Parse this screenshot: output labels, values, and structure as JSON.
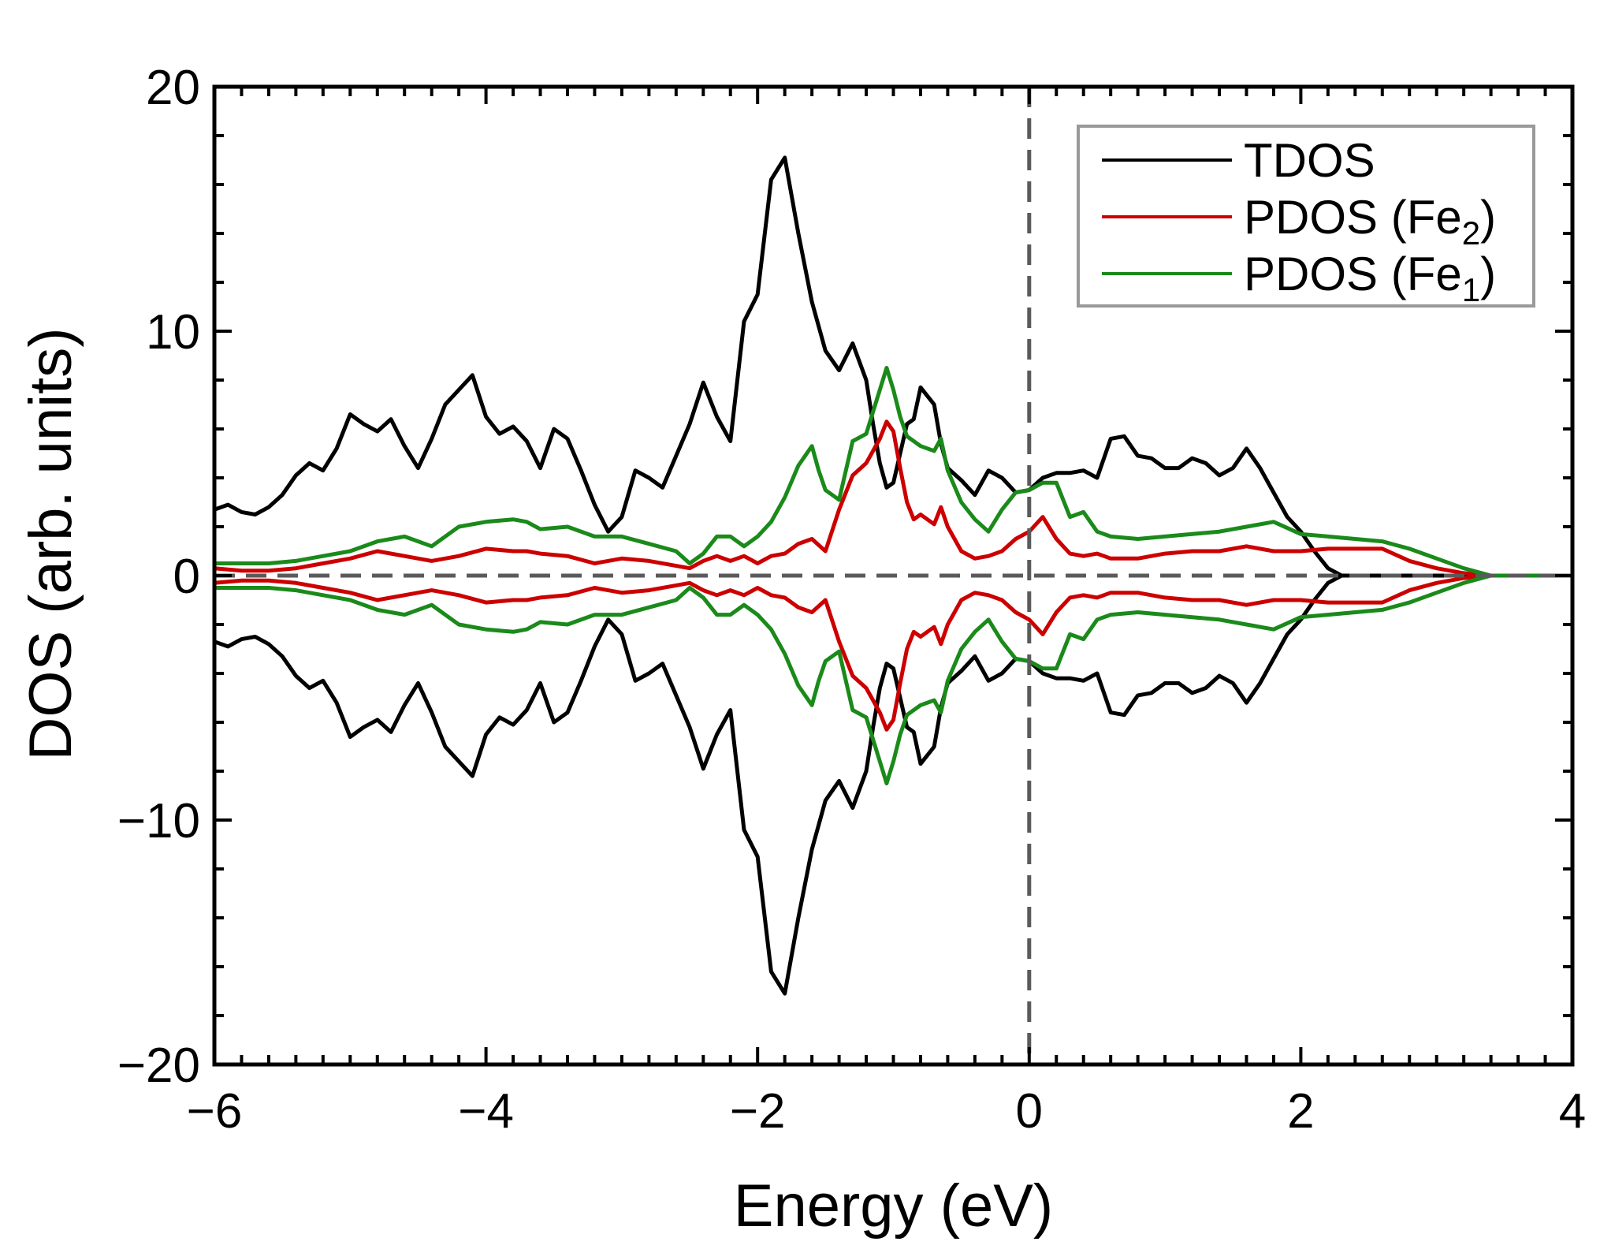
{
  "chart_data": {
    "type": "line",
    "xlabel": "Energy (eV)",
    "ylabel": "DOS (arb. units)",
    "xlim": [
      -6,
      4
    ],
    "ylim": [
      -20,
      20
    ],
    "xticks": [
      -6,
      -4,
      -2,
      0,
      2,
      4
    ],
    "xtick_labels": [
      "−6",
      "−4",
      "−2",
      "0",
      "2",
      "4"
    ],
    "yticks": [
      -20,
      -10,
      0,
      10,
      20
    ],
    "ytick_labels": [
      "−20",
      "−10",
      "0",
      "10",
      "20"
    ],
    "reference_lines": [
      {
        "orientation": "vertical",
        "value": 0,
        "style": "dashed"
      },
      {
        "orientation": "horizontal",
        "value": 0,
        "style": "dashed"
      }
    ],
    "legend_position": "top-right",
    "mirrored_spin_down": true,
    "series": [
      {
        "name": "TDOS",
        "legend_label": "TDOS",
        "color": "#000000",
        "x": [
          -6.0,
          -5.9,
          -5.8,
          -5.7,
          -5.6,
          -5.5,
          -5.4,
          -5.3,
          -5.2,
          -5.1,
          -5.0,
          -4.9,
          -4.8,
          -4.7,
          -4.6,
          -4.5,
          -4.4,
          -4.3,
          -4.2,
          -4.1,
          -4.0,
          -3.9,
          -3.8,
          -3.7,
          -3.6,
          -3.5,
          -3.4,
          -3.3,
          -3.2,
          -3.1,
          -3.0,
          -2.9,
          -2.8,
          -2.7,
          -2.6,
          -2.5,
          -2.4,
          -2.3,
          -2.2,
          -2.1,
          -2.0,
          -1.9,
          -1.8,
          -1.7,
          -1.6,
          -1.5,
          -1.4,
          -1.3,
          -1.2,
          -1.15,
          -1.1,
          -1.05,
          -1.0,
          -0.95,
          -0.9,
          -0.85,
          -0.8,
          -0.7,
          -0.65,
          -0.6,
          -0.5,
          -0.4,
          -0.3,
          -0.2,
          -0.1,
          0.0,
          0.1,
          0.2,
          0.3,
          0.4,
          0.5,
          0.6,
          0.7,
          0.8,
          0.9,
          1.0,
          1.1,
          1.2,
          1.3,
          1.4,
          1.5,
          1.6,
          1.7,
          1.8,
          1.9,
          2.0,
          2.1,
          2.2,
          2.3,
          2.4,
          2.5,
          2.6,
          2.7,
          2.8,
          2.9,
          3.0,
          3.1,
          3.2,
          3.3,
          3.4,
          3.6,
          3.8,
          4.0
        ],
        "y": [
          2.7,
          2.9,
          2.6,
          2.5,
          2.8,
          3.3,
          4.1,
          4.6,
          4.3,
          5.2,
          6.6,
          6.2,
          5.9,
          6.4,
          5.3,
          4.4,
          5.6,
          7.0,
          7.6,
          8.2,
          6.5,
          5.8,
          6.1,
          5.5,
          4.4,
          6.0,
          5.6,
          4.3,
          2.9,
          1.8,
          2.4,
          4.3,
          4.0,
          3.6,
          4.9,
          6.2,
          7.9,
          6.5,
          5.5,
          10.4,
          11.5,
          16.2,
          17.1,
          14.0,
          11.2,
          9.2,
          8.4,
          9.5,
          8.0,
          6.2,
          4.6,
          3.6,
          3.8,
          5.0,
          6.2,
          6.4,
          7.7,
          7.0,
          5.4,
          4.4,
          3.9,
          3.3,
          4.3,
          4.0,
          3.4,
          3.5,
          4.0,
          4.2,
          4.2,
          4.3,
          4.0,
          5.6,
          5.7,
          4.9,
          4.8,
          4.4,
          4.4,
          4.8,
          4.6,
          4.1,
          4.4,
          5.2,
          4.4,
          3.4,
          2.4,
          1.8,
          1.0,
          0.3,
          0.0,
          0.0,
          0.0,
          0.0,
          0.0,
          0.0,
          0.0,
          0.0,
          0.0,
          0.0,
          0.0,
          0.0,
          0.0,
          0.0,
          0.0
        ]
      },
      {
        "name": "PDOS (Fe2)",
        "legend_label": "PDOS (Fe",
        "legend_sub": "2",
        "color": "#cc0000",
        "x": [
          -6.0,
          -5.8,
          -5.6,
          -5.4,
          -5.2,
          -5.0,
          -4.8,
          -4.6,
          -4.4,
          -4.2,
          -4.0,
          -3.8,
          -3.7,
          -3.6,
          -3.4,
          -3.2,
          -3.0,
          -2.8,
          -2.6,
          -2.5,
          -2.4,
          -2.3,
          -2.2,
          -2.1,
          -2.0,
          -1.9,
          -1.8,
          -1.7,
          -1.6,
          -1.5,
          -1.4,
          -1.3,
          -1.2,
          -1.1,
          -1.05,
          -1.0,
          -0.95,
          -0.9,
          -0.85,
          -0.8,
          -0.7,
          -0.65,
          -0.6,
          -0.5,
          -0.4,
          -0.3,
          -0.2,
          -0.1,
          0.0,
          0.1,
          0.2,
          0.3,
          0.4,
          0.5,
          0.6,
          0.8,
          1.0,
          1.2,
          1.4,
          1.6,
          1.8,
          2.0,
          2.2,
          2.4,
          2.6,
          2.8,
          3.0,
          3.2,
          3.4,
          4.0
        ],
        "y": [
          0.3,
          0.2,
          0.2,
          0.3,
          0.5,
          0.7,
          1.0,
          0.8,
          0.6,
          0.8,
          1.1,
          1.0,
          1.0,
          0.9,
          0.8,
          0.5,
          0.7,
          0.6,
          0.4,
          0.3,
          0.6,
          0.8,
          0.6,
          0.8,
          0.5,
          0.8,
          0.9,
          1.3,
          1.5,
          1.0,
          2.7,
          4.1,
          4.6,
          5.6,
          6.3,
          5.9,
          4.4,
          3.0,
          2.3,
          2.5,
          2.1,
          2.8,
          2.0,
          1.0,
          0.7,
          0.8,
          1.0,
          1.5,
          1.8,
          2.4,
          1.5,
          0.9,
          0.8,
          0.9,
          0.7,
          0.7,
          0.9,
          1.0,
          1.0,
          1.2,
          1.0,
          1.0,
          1.1,
          1.1,
          1.1,
          0.6,
          0.3,
          0.1,
          0.0,
          0.0
        ]
      },
      {
        "name": "PDOS (Fe1)",
        "legend_label": "PDOS (Fe",
        "legend_sub": "1",
        "color": "#1a8a1a",
        "x": [
          -6.0,
          -5.8,
          -5.6,
          -5.4,
          -5.2,
          -5.0,
          -4.8,
          -4.6,
          -4.4,
          -4.2,
          -4.0,
          -3.8,
          -3.7,
          -3.6,
          -3.4,
          -3.2,
          -3.0,
          -2.8,
          -2.6,
          -2.5,
          -2.4,
          -2.3,
          -2.2,
          -2.1,
          -2.0,
          -1.9,
          -1.8,
          -1.7,
          -1.6,
          -1.55,
          -1.5,
          -1.4,
          -1.3,
          -1.2,
          -1.1,
          -1.05,
          -1.0,
          -0.95,
          -0.9,
          -0.8,
          -0.7,
          -0.65,
          -0.6,
          -0.5,
          -0.4,
          -0.3,
          -0.2,
          -0.1,
          0.0,
          0.1,
          0.2,
          0.3,
          0.4,
          0.5,
          0.6,
          0.8,
          1.0,
          1.2,
          1.4,
          1.6,
          1.8,
          2.0,
          2.2,
          2.4,
          2.6,
          2.8,
          3.0,
          3.2,
          3.4,
          4.0
        ],
        "y": [
          0.5,
          0.5,
          0.5,
          0.6,
          0.8,
          1.0,
          1.4,
          1.6,
          1.2,
          2.0,
          2.2,
          2.3,
          2.2,
          1.9,
          2.0,
          1.6,
          1.6,
          1.3,
          1.0,
          0.5,
          0.9,
          1.6,
          1.6,
          1.2,
          1.6,
          2.2,
          3.2,
          4.5,
          5.3,
          4.3,
          3.5,
          3.1,
          5.5,
          5.8,
          7.6,
          8.5,
          7.6,
          6.5,
          5.7,
          5.3,
          5.1,
          5.6,
          4.3,
          3.0,
          2.3,
          1.8,
          2.7,
          3.4,
          3.5,
          3.8,
          3.8,
          2.4,
          2.6,
          1.8,
          1.6,
          1.5,
          1.6,
          1.7,
          1.8,
          2.0,
          2.2,
          1.7,
          1.6,
          1.5,
          1.4,
          1.1,
          0.7,
          0.3,
          0.0,
          0.0
        ]
      }
    ]
  }
}
